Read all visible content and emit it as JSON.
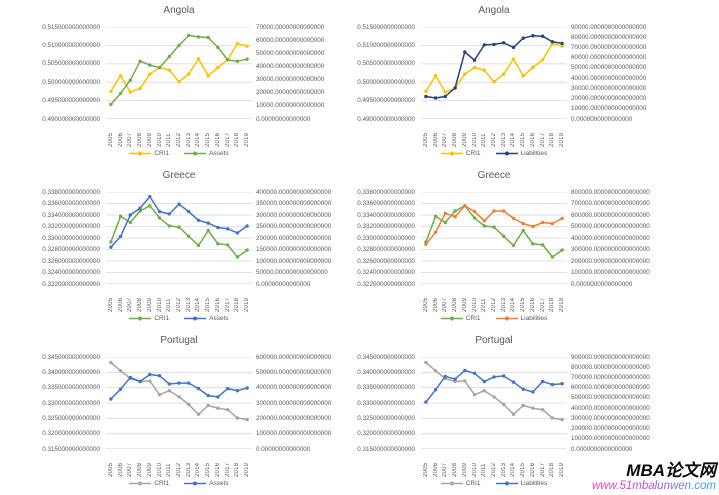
{
  "watermark": {
    "brand": "MBA论文网",
    "url": "www.51mbalunwen.com"
  },
  "palette": {
    "gridline": "#D9D9D9",
    "axis_line": "#BFBFBF",
    "axis_text": "#595959",
    "title_text": "#595959",
    "cri1_yellow": "#FFC000",
    "assets_green": "#70AD47",
    "liabilities_navy": "#264478",
    "blue": "#4472C4",
    "liabilities_orange": "#ED7D31",
    "cri1_gray": "#A5A5A5"
  },
  "chart_data": [
    {
      "id": "angola-assets",
      "type": "line",
      "title": "Angola",
      "x": [
        "2005",
        "2006",
        "2007",
        "2008",
        "2009",
        "2010",
        "2011",
        "2012",
        "2013",
        "2014",
        "2015",
        "2016",
        "2017",
        "2018",
        "2019"
      ],
      "left_axis": {
        "min": 0.49,
        "max": 0.515,
        "ticks": [
          "0.515000000000000",
          "0.510000000000000",
          "0.505000000000000",
          "0.500000000000000",
          "0.495000000000000",
          "0.490000000000000"
        ]
      },
      "right_axis": {
        "min": 0,
        "max": 70000,
        "ticks": [
          "70000.00000000000000",
          "60000.00000000000000",
          "50000.00000000000000",
          "40000.00000000000000",
          "30000.00000000000000",
          "20000.00000000000000",
          "10000.00000000000000",
          "0.00000000000000"
        ]
      },
      "series": [
        {
          "name": "CRI1",
          "axis": "left",
          "color": "#FFC000",
          "values": [
            0.4975,
            0.5018,
            0.4973,
            0.4983,
            0.5022,
            0.504,
            0.5033,
            0.5001,
            0.5022,
            0.5063,
            0.5017,
            0.504,
            0.5061,
            0.5105,
            0.5098
          ]
        },
        {
          "name": "Assets",
          "axis": "right",
          "color": "#70AD47",
          "values": [
            11000,
            19500,
            29500,
            44000,
            41000,
            39000,
            47500,
            56000,
            63500,
            62500,
            62000,
            54500,
            45000,
            44000,
            45500
          ]
        }
      ]
    },
    {
      "id": "angola-liabilities",
      "type": "line",
      "title": "Angola",
      "x": [
        "2005",
        "2006",
        "2007",
        "2008",
        "2009",
        "2010",
        "2011",
        "2012",
        "2013",
        "2014",
        "2015",
        "2016",
        "2017",
        "2018",
        "2019"
      ],
      "left_axis": {
        "min": 0.49,
        "max": 0.515,
        "ticks": [
          "0.515000000000000",
          "0.510000000000000",
          "0.505000000000000",
          "0.500000000000000",
          "0.495000000000000",
          "0.490000000000000"
        ]
      },
      "right_axis": {
        "min": 0,
        "max": 90000,
        "ticks": [
          "90000.0000000000000000",
          "80000.0000000000000000",
          "70000.0000000000000000",
          "60000.0000000000000000",
          "50000.0000000000000000",
          "40000.0000000000000000",
          "30000.0000000000000000",
          "20000.0000000000000000",
          "10000.0000000000000000",
          "0.0000000000000000"
        ]
      },
      "series": [
        {
          "name": "CRI1",
          "axis": "left",
          "color": "#FFC000",
          "values": [
            0.4975,
            0.5018,
            0.4973,
            0.4983,
            0.5022,
            0.504,
            0.5033,
            0.5001,
            0.5022,
            0.5063,
            0.5017,
            0.504,
            0.5061,
            0.5105,
            0.5098
          ]
        },
        {
          "name": "Liabilities",
          "axis": "right",
          "color": "#264478",
          "values": [
            22000,
            20500,
            22000,
            30500,
            65500,
            57500,
            72500,
            73000,
            74500,
            70000,
            79000,
            81500,
            81000,
            75500,
            74000
          ]
        }
      ]
    },
    {
      "id": "greece-assets",
      "type": "line",
      "title": "Greece",
      "x": [
        "2005",
        "2006",
        "2007",
        "2008",
        "2009",
        "2010",
        "2011",
        "2012",
        "2013",
        "2014",
        "2015",
        "2016",
        "2017",
        "2018",
        "2019"
      ],
      "left_axis": {
        "min": 0.322,
        "max": 0.338,
        "ticks": [
          "0.338000000000000",
          "0.336000000000000",
          "0.334000000000000",
          "0.332000000000000",
          "0.330000000000000",
          "0.328000000000000",
          "0.326000000000000",
          "0.324000000000000",
          "0.322000000000000"
        ]
      },
      "right_axis": {
        "min": 0,
        "max": 400000,
        "ticks": [
          "400000.000000000000000",
          "350000.000000000000000",
          "300000.000000000000000",
          "250000.000000000000000",
          "200000.000000000000000",
          "150000.000000000000000",
          "100000.000000000000000",
          "50000.000000000000000",
          "0.00000000000000"
        ]
      },
      "series": [
        {
          "name": "CRI1",
          "axis": "left",
          "color": "#70AD47",
          "values": [
            0.3293,
            0.3338,
            0.3327,
            0.3347,
            0.3356,
            0.3335,
            0.3321,
            0.3319,
            0.3303,
            0.3287,
            0.3313,
            0.329,
            0.3288,
            0.3267,
            0.3279
          ]
        },
        {
          "name": "Assets",
          "axis": "right",
          "color": "#4472C4",
          "values": [
            160000,
            207000,
            300000,
            330000,
            380000,
            315000,
            305000,
            347000,
            315000,
            277000,
            265000,
            245000,
            240000,
            222000,
            252000
          ]
        }
      ]
    },
    {
      "id": "greece-liabilities",
      "type": "line",
      "title": "Greece",
      "x": [
        "2005",
        "2006",
        "2007",
        "2008",
        "2009",
        "2010",
        "2011",
        "2012",
        "2013",
        "2014",
        "2015",
        "2016",
        "2017",
        "2018",
        "2019"
      ],
      "left_axis": {
        "min": 0.322,
        "max": 0.338,
        "ticks": [
          "0.338000000000000",
          "0.336000000000000",
          "0.334000000000000",
          "0.332000000000000",
          "0.330000000000000",
          "0.328000000000000",
          "0.326000000000000",
          "0.324000000000000",
          "0.322000000000000"
        ]
      },
      "right_axis": {
        "min": 0,
        "max": 800000,
        "ticks": [
          "800000.0000000000000000",
          "700000.0000000000000000",
          "600000.0000000000000000",
          "500000.0000000000000000",
          "400000.0000000000000000",
          "300000.0000000000000000",
          "200000.0000000000000000",
          "100000.0000000000000000",
          "0.0000000000000000"
        ]
      },
      "series": [
        {
          "name": "CRI1",
          "axis": "left",
          "color": "#70AD47",
          "values": [
            0.3293,
            0.3338,
            0.3327,
            0.3347,
            0.3356,
            0.3335,
            0.3321,
            0.3319,
            0.3303,
            0.3287,
            0.3313,
            0.329,
            0.3288,
            0.3267,
            0.3279
          ]
        },
        {
          "name": "Liabilities",
          "axis": "right",
          "color": "#ED7D31",
          "values": [
            345000,
            450000,
            615000,
            585000,
            680000,
            630000,
            550000,
            635000,
            635000,
            570000,
            525000,
            500000,
            535000,
            525000,
            570000
          ]
        }
      ]
    },
    {
      "id": "portugal-assets",
      "type": "line",
      "title": "Portugal",
      "x": [
        "2005",
        "2006",
        "2007",
        "2008",
        "2009",
        "2010",
        "2011",
        "2012",
        "2013",
        "2014",
        "2015",
        "2016",
        "2017",
        "2018",
        "2019"
      ],
      "left_axis": {
        "min": 0.315,
        "max": 0.345,
        "ticks": [
          "0.345000000000000",
          "0.340000000000000",
          "0.335000000000000",
          "0.330000000000000",
          "0.325000000000000",
          "0.320000000000000",
          "0.315000000000000"
        ]
      },
      "right_axis": {
        "min": 0,
        "max": 600000,
        "ticks": [
          "600000.000000000000000",
          "500000.000000000000000",
          "400000.000000000000000",
          "300000.000000000000000",
          "200000.000000000000000",
          "100000.000000000000000",
          "0.00000000000000"
        ]
      },
      "series": [
        {
          "name": "CRI1",
          "axis": "left",
          "color": "#A5A5A5",
          "values": [
            0.3432,
            0.3405,
            0.338,
            0.337,
            0.3372,
            0.3327,
            0.334,
            0.332,
            0.3295,
            0.3263,
            0.3292,
            0.3283,
            0.3278,
            0.3251,
            0.3246
          ]
        },
        {
          "name": "Assets",
          "axis": "right",
          "color": "#4472C4",
          "values": [
            326000,
            390000,
            466000,
            440000,
            486000,
            478000,
            424000,
            430000,
            430000,
            394000,
            348000,
            340000,
            394000,
            380000,
            398000
          ]
        }
      ]
    },
    {
      "id": "portugal-liabilities",
      "type": "line",
      "title": "Portugal",
      "x": [
        "2005",
        "2006",
        "2007",
        "2008",
        "2009",
        "2010",
        "2011",
        "2012",
        "2013",
        "2014",
        "2015",
        "2016",
        "2017",
        "2018",
        "2019"
      ],
      "left_axis": {
        "min": 0.315,
        "max": 0.345,
        "ticks": [
          "0.345000000000000",
          "0.340000000000000",
          "0.335000000000000",
          "0.330000000000000",
          "0.325000000000000",
          "0.320000000000000",
          "0.315000000000000"
        ]
      },
      "right_axis": {
        "min": 0,
        "max": 900000,
        "ticks": [
          "900000.0000000000000000",
          "800000.0000000000000000",
          "700000.0000000000000000",
          "600000.0000000000000000",
          "500000.0000000000000000",
          "400000.0000000000000000",
          "300000.0000000000000000",
          "200000.0000000000000000",
          "100000.0000000000000000",
          "0.0000000000000000"
        ]
      },
      "series": [
        {
          "name": "CRI1",
          "axis": "left",
          "color": "#A5A5A5",
          "values": [
            0.3432,
            0.3405,
            0.338,
            0.337,
            0.3372,
            0.3327,
            0.334,
            0.332,
            0.3295,
            0.3263,
            0.3292,
            0.3283,
            0.3278,
            0.3251,
            0.3246
          ]
        },
        {
          "name": "Liabilities",
          "axis": "right",
          "color": "#4472C4",
          "values": [
            459000,
            579000,
            711000,
            684000,
            768000,
            741000,
            660000,
            705000,
            714000,
            654000,
            585000,
            558000,
            660000,
            630000,
            639000
          ]
        }
      ]
    }
  ]
}
